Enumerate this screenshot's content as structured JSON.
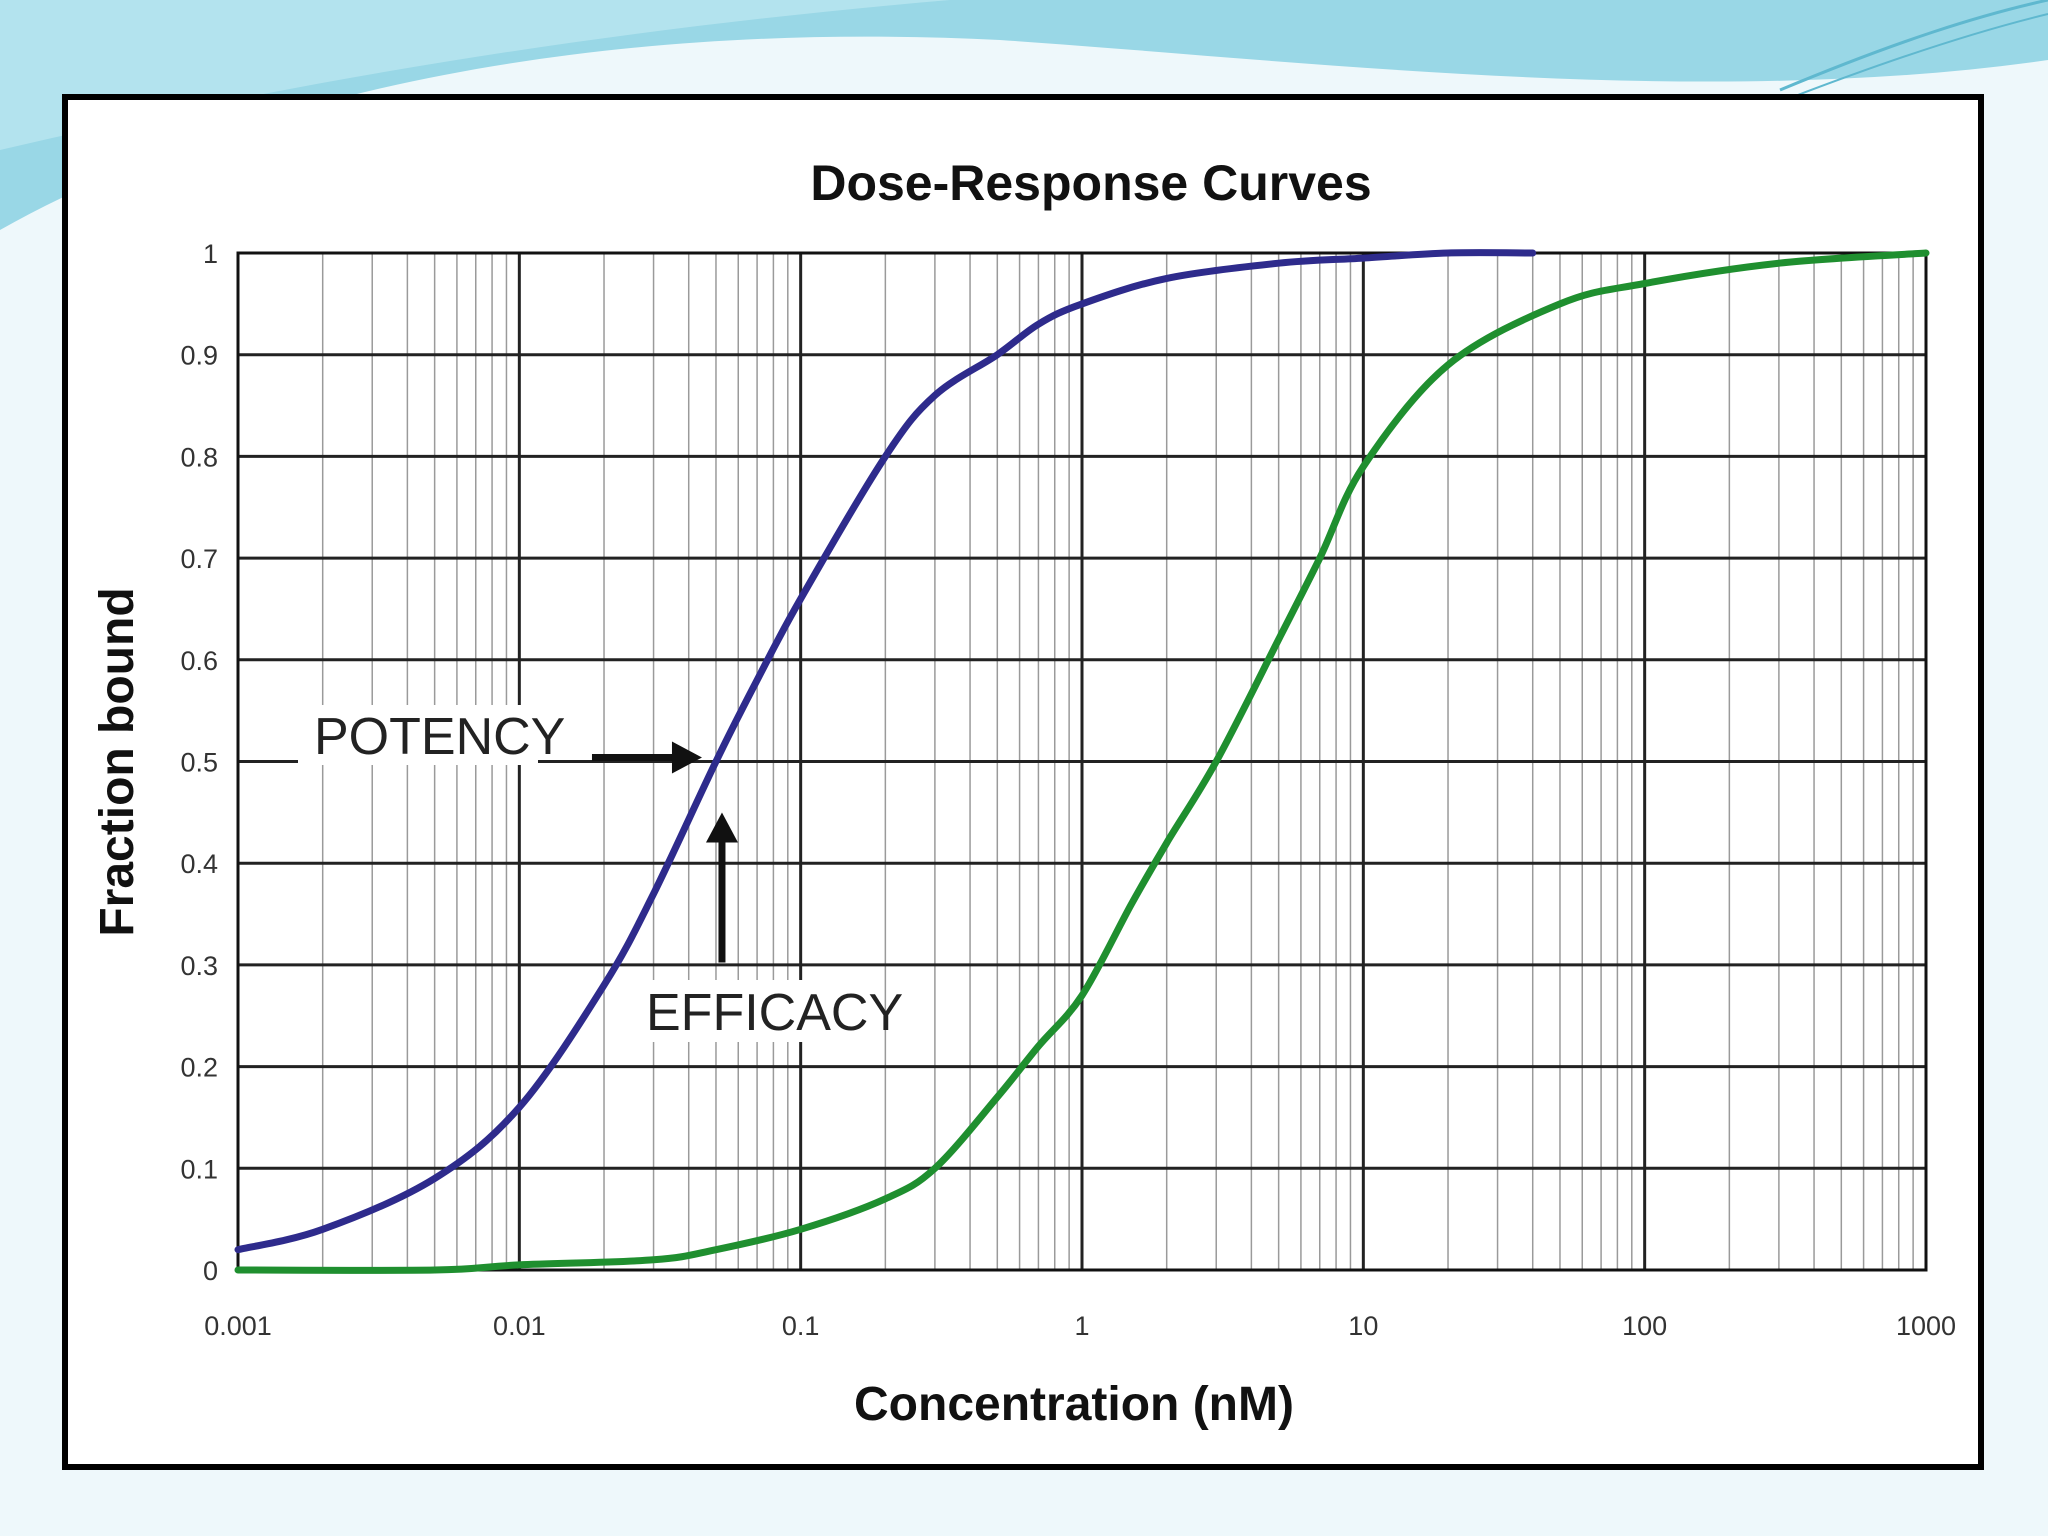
{
  "slide": {
    "background_color": "#eef8fb",
    "swoosh_color": "#8fd3e3"
  },
  "chart_data": {
    "type": "line",
    "title": "Dose-Response Curves",
    "xlabel": "Concentration (nM)",
    "ylabel": "Fraction bound",
    "x_scale": "log",
    "xlim": [
      0.001,
      1000
    ],
    "ylim": [
      0,
      1
    ],
    "x_ticks": [
      "0.001",
      "0.01",
      "0.1",
      "1",
      "10",
      "100",
      "1000"
    ],
    "y_ticks": [
      "0",
      "0.1",
      "0.2",
      "0.3",
      "0.4",
      "0.5",
      "0.6",
      "0.7",
      "0.8",
      "0.9",
      "1"
    ],
    "grid": true,
    "series": [
      {
        "color": "#2e2b8c",
        "x": [
          0.001,
          0.002,
          0.005,
          0.01,
          0.02,
          0.03,
          0.05,
          0.07,
          0.1,
          0.2,
          0.3,
          0.5,
          0.7,
          1,
          2,
          5,
          10,
          20,
          40
        ],
        "y": [
          0.02,
          0.04,
          0.09,
          0.16,
          0.28,
          0.37,
          0.5,
          0.58,
          0.66,
          0.8,
          0.86,
          0.9,
          0.93,
          0.95,
          0.975,
          0.99,
          0.995,
          1.0,
          1.0
        ]
      },
      {
        "color": "#1f8f2f",
        "x": [
          0.001,
          0.005,
          0.01,
          0.03,
          0.05,
          0.1,
          0.2,
          0.3,
          0.5,
          0.7,
          1,
          1.5,
          2,
          3,
          5,
          7,
          10,
          20,
          50,
          100,
          300,
          1000
        ],
        "y": [
          0.0,
          0.0,
          0.005,
          0.01,
          0.02,
          0.04,
          0.07,
          0.1,
          0.17,
          0.22,
          0.27,
          0.36,
          0.42,
          0.5,
          0.62,
          0.7,
          0.79,
          0.89,
          0.95,
          0.97,
          0.99,
          1.0
        ]
      }
    ],
    "annotations": [
      {
        "text": "POTENCY",
        "arrow_to": {
          "x": 0.05,
          "y": 0.5
        },
        "arrow_direction": "right"
      },
      {
        "text": "EFFICACY",
        "arrow_to": {
          "x": 0.05,
          "y": 0.44
        },
        "arrow_direction": "up"
      }
    ]
  }
}
